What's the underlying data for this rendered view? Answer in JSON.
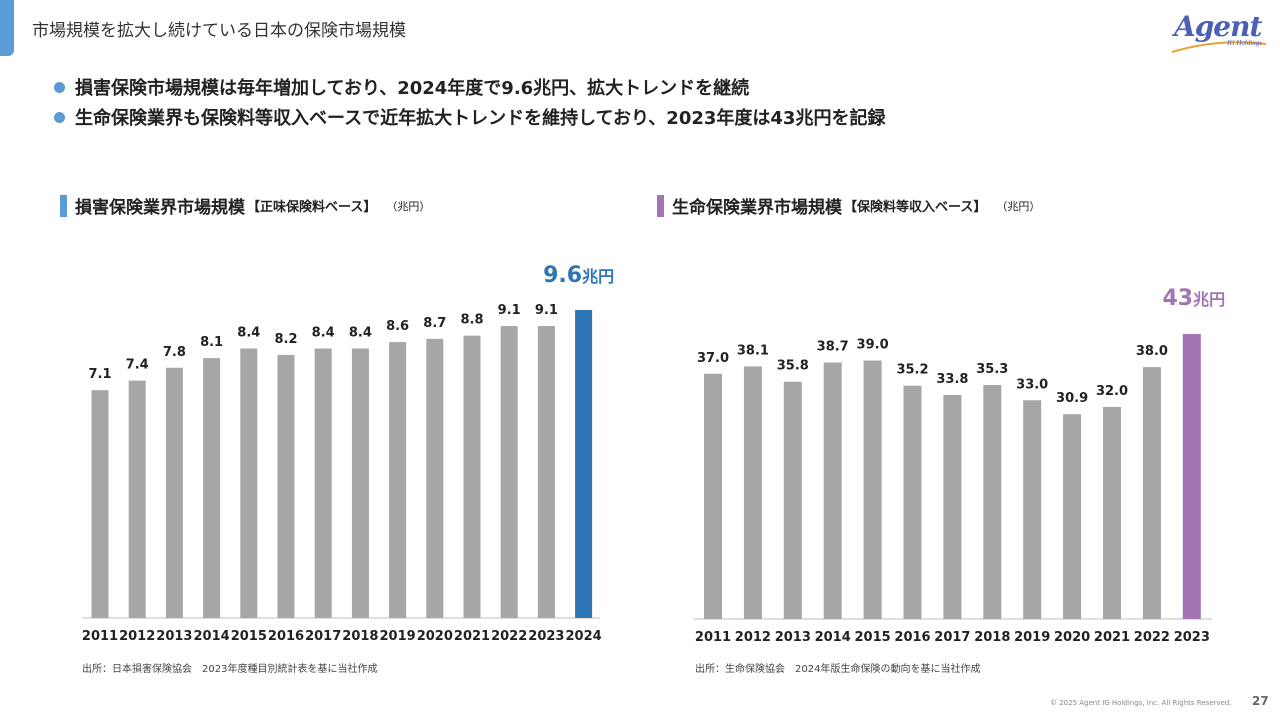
{
  "header": {
    "title": "市場規模を拡大し続けている日本の保険市場規模",
    "logo_text": "Agent",
    "logo_subtext": "IG Holdings"
  },
  "bullets": [
    "損害保険市場規模は毎年増加しており、2024年度で9.6兆円、拡大トレンドを継続",
    "生命保険業界も保険料等収入ベースで近年拡大トレンドを維持しており、2023年度は43兆円を記録"
  ],
  "sections": {
    "left": {
      "title": "損害保険業界市場規模",
      "subtitle": "【正味保険料ベース】",
      "unit": "（兆円）",
      "bar_color": "#5b9bd5"
    },
    "right": {
      "title": "生命保険業界市場規模",
      "subtitle": "【保険料等収入ベース】",
      "unit": "（兆円）",
      "bar_color": "#a374b1"
    }
  },
  "chart_data": [
    {
      "type": "bar",
      "categories": [
        "2011",
        "2012",
        "2013",
        "2014",
        "2015",
        "2016",
        "2017",
        "2018",
        "2019",
        "2020",
        "2021",
        "2022",
        "2023",
        "2024"
      ],
      "values": [
        7.1,
        7.4,
        7.8,
        8.1,
        8.4,
        8.2,
        8.4,
        8.4,
        8.6,
        8.7,
        8.8,
        9.1,
        9.1,
        9.6
      ],
      "labels": [
        "7.1",
        "7.4",
        "7.8",
        "8.1",
        "8.4",
        "8.2",
        "8.4",
        "8.4",
        "8.6",
        "8.7",
        "8.8",
        "9.1",
        "9.1",
        ""
      ],
      "highlight_label": "9.6",
      "highlight_unit": "兆円",
      "bar_color": "#a6a6a6",
      "highlight_color": "#2e75b6",
      "ylim": [
        0,
        9.6
      ]
    },
    {
      "type": "bar",
      "categories": [
        "2011",
        "2012",
        "2013",
        "2014",
        "2015",
        "2016",
        "2017",
        "2018",
        "2019",
        "2020",
        "2021",
        "2022",
        "2023"
      ],
      "values": [
        37.0,
        38.1,
        35.8,
        38.7,
        39.0,
        35.2,
        33.8,
        35.3,
        33.0,
        30.9,
        32.0,
        38.0,
        43.0
      ],
      "labels": [
        "37.0",
        "38.1",
        "35.8",
        "38.7",
        "39.0",
        "35.2",
        "33.8",
        "35.3",
        "33.0",
        "30.9",
        "32.0",
        "38.0",
        ""
      ],
      "highlight_label": "43",
      "highlight_unit": "兆円",
      "bar_color": "#a6a6a6",
      "highlight_color": "#a374b1",
      "ylim": [
        0,
        43
      ]
    }
  ],
  "sources": {
    "left": "出所：日本損害保険協会　2023年度種目別統計表を基に当社作成",
    "right": "出所：生命保険協会　2024年版生命保険の動向を基に当社作成"
  },
  "footer": {
    "copyright": "© 2025 Agent IG Holdings, Inc. All Rights Reserved.",
    "page": "27"
  }
}
